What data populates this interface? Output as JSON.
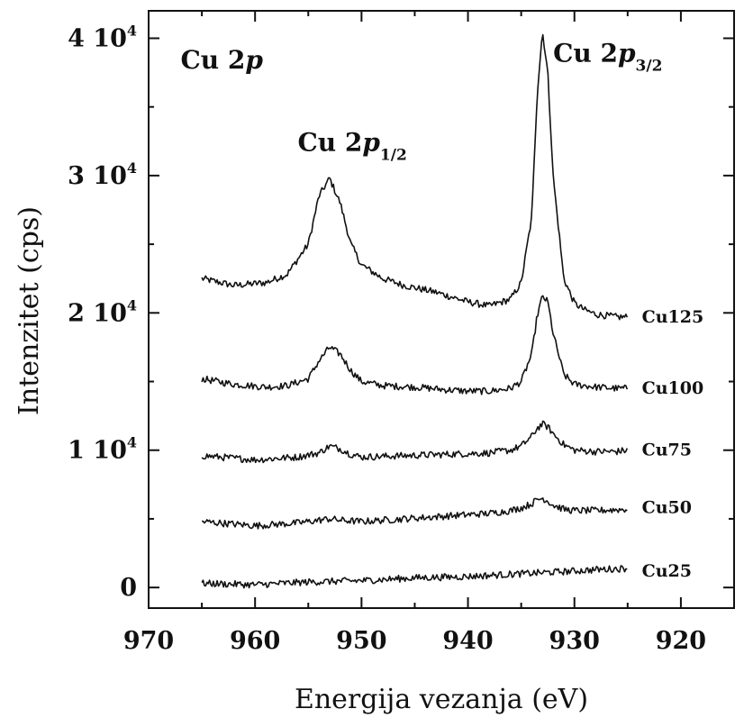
{
  "chart_data": {
    "type": "line",
    "xlabel": "Energija vezanja (eV)",
    "ylabel": "Intenzitet (cps)",
    "xlim": [
      970,
      915
    ],
    "ylim": [
      -1500,
      42000
    ],
    "x_reversed": true,
    "grid": false,
    "x_ticks": [
      {
        "value": 970,
        "label": "970"
      },
      {
        "value": 960,
        "label": "960"
      },
      {
        "value": 950,
        "label": "950"
      },
      {
        "value": 940,
        "label": "940"
      },
      {
        "value": 930,
        "label": "930"
      },
      {
        "value": 920,
        "label": "920"
      }
    ],
    "y_ticks": [
      {
        "value": 0,
        "label": "0",
        "sup": ""
      },
      {
        "value": 10000,
        "label": "1 10",
        "sup": "4"
      },
      {
        "value": 20000,
        "label": "2 10",
        "sup": "4"
      },
      {
        "value": 30000,
        "label": "3 10",
        "sup": "4"
      },
      {
        "value": 40000,
        "label": "4 10",
        "sup": "4"
      }
    ],
    "annotations": [
      {
        "text": "Cu 2",
        "italic": "p",
        "sub": "",
        "x": 967,
        "y": 37800
      },
      {
        "text": "Cu 2",
        "italic": "p",
        "sub": "1/2",
        "x": 956,
        "y": 31800
      },
      {
        "text": "Cu 2",
        "italic": "p",
        "sub": "3/2",
        "x": 932,
        "y": 38300
      }
    ],
    "series": [
      {
        "name": "Cu125",
        "label_x": 924,
        "label_y": 19700,
        "x": [
          965,
          962,
          959,
          957,
          955,
          954,
          953,
          952,
          951,
          950,
          948,
          946,
          943,
          940,
          938,
          936,
          935,
          934,
          933.5,
          933,
          932.5,
          932,
          931,
          930,
          929,
          928,
          926,
          925
        ],
        "y": [
          22500,
          22000,
          22200,
          22800,
          25000,
          28500,
          29800,
          28000,
          25000,
          23500,
          22500,
          22000,
          21500,
          20800,
          20500,
          21000,
          22200,
          27000,
          36000,
          40500,
          37500,
          30000,
          22500,
          20700,
          20200,
          19900,
          19700,
          19700
        ]
      },
      {
        "name": "Cu100",
        "label_x": 924,
        "label_y": 14500,
        "x": [
          965,
          962,
          959,
          957,
          955,
          954,
          953,
          952,
          951,
          950,
          948,
          945,
          942,
          940,
          938,
          936,
          935,
          934,
          933.5,
          933,
          932.5,
          932,
          931,
          930,
          928,
          926,
          925
        ],
        "y": [
          15200,
          14800,
          14600,
          14700,
          15200,
          16500,
          17500,
          17000,
          15800,
          15000,
          14700,
          14600,
          14400,
          14300,
          14300,
          14500,
          15000,
          17000,
          19800,
          21200,
          20800,
          18500,
          15500,
          14800,
          14600,
          14500,
          14500
        ]
      },
      {
        "name": "Cu75",
        "label_x": 924,
        "label_y": 10000,
        "x": [
          965,
          960,
          956,
          954,
          953,
          952,
          951,
          950,
          946,
          942,
          938,
          936,
          935,
          934,
          933.5,
          933,
          932.5,
          932,
          931,
          930,
          928,
          926,
          925
        ],
        "y": [
          9600,
          9300,
          9500,
          9800,
          10300,
          10100,
          9700,
          9500,
          9600,
          9700,
          9800,
          10000,
          10300,
          11000,
          11600,
          11900,
          11700,
          11200,
          10400,
          10000,
          9900,
          9900,
          10000
        ]
      },
      {
        "name": "Cu50",
        "label_x": 924,
        "label_y": 5800,
        "x": [
          965,
          960,
          956,
          954,
          953,
          952,
          950,
          946,
          942,
          938,
          936,
          935,
          934,
          933.5,
          933,
          932.5,
          932,
          931,
          930,
          928,
          925
        ],
        "y": [
          4800,
          4500,
          4700,
          4900,
          5000,
          4900,
          4800,
          5000,
          5200,
          5400,
          5600,
          5800,
          6100,
          6400,
          6500,
          6300,
          6000,
          5700,
          5600,
          5600,
          5700
        ]
      },
      {
        "name": "Cu25",
        "label_x": 924,
        "label_y": 1200,
        "x": [
          965,
          960,
          955,
          950,
          945,
          940,
          935,
          930,
          928,
          925
        ],
        "y": [
          300,
          200,
          400,
          500,
          700,
          800,
          1000,
          1200,
          1300,
          1400
        ]
      }
    ]
  }
}
